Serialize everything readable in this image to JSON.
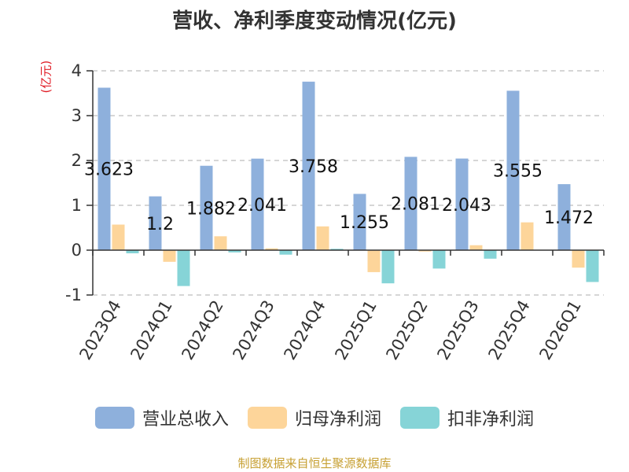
{
  "title": "营收、净利季度变动情况(亿元)",
  "unit_label": "(亿元)",
  "source": "制图数据来自恒生聚源数据库",
  "colors": {
    "revenue": "#8eb0dc",
    "net_profit": "#fdd59a",
    "deducted_profit": "#86d4d7",
    "grid": "#c8c8c8",
    "axis": "#333333"
  },
  "chart_data": {
    "type": "bar",
    "categories": [
      "2023Q4",
      "2024Q1",
      "2024Q2",
      "2024Q3",
      "2024Q4",
      "2025Q1",
      "2025Q2",
      "2025Q3",
      "2025Q4",
      "2026Q1"
    ],
    "series": [
      {
        "name": "营业总收入",
        "color_key": "revenue",
        "values": [
          3.623,
          1.2,
          1.882,
          2.041,
          3.758,
          1.255,
          2.081,
          2.043,
          3.555,
          1.472
        ],
        "labels": [
          "3.623",
          "1.2",
          "1.882",
          "2.041",
          "3.758",
          "1.255",
          "2.081",
          "2.043",
          "3.555",
          "1.472"
        ]
      },
      {
        "name": "归母净利润",
        "color_key": "net_profit",
        "values": [
          0.57,
          -0.26,
          0.31,
          0.04,
          0.53,
          -0.49,
          -0.03,
          0.11,
          0.62,
          -0.39
        ]
      },
      {
        "name": "扣非净利润",
        "color_key": "deducted_profit",
        "values": [
          -0.07,
          -0.8,
          -0.05,
          -0.1,
          0.03,
          -0.74,
          -0.41,
          -0.19,
          0.0,
          -0.71
        ]
      }
    ],
    "ylim": [
      -1,
      4
    ],
    "yticks": [
      -1,
      0,
      1,
      2,
      3,
      4
    ],
    "grid": true,
    "legend_position": "bottom"
  }
}
